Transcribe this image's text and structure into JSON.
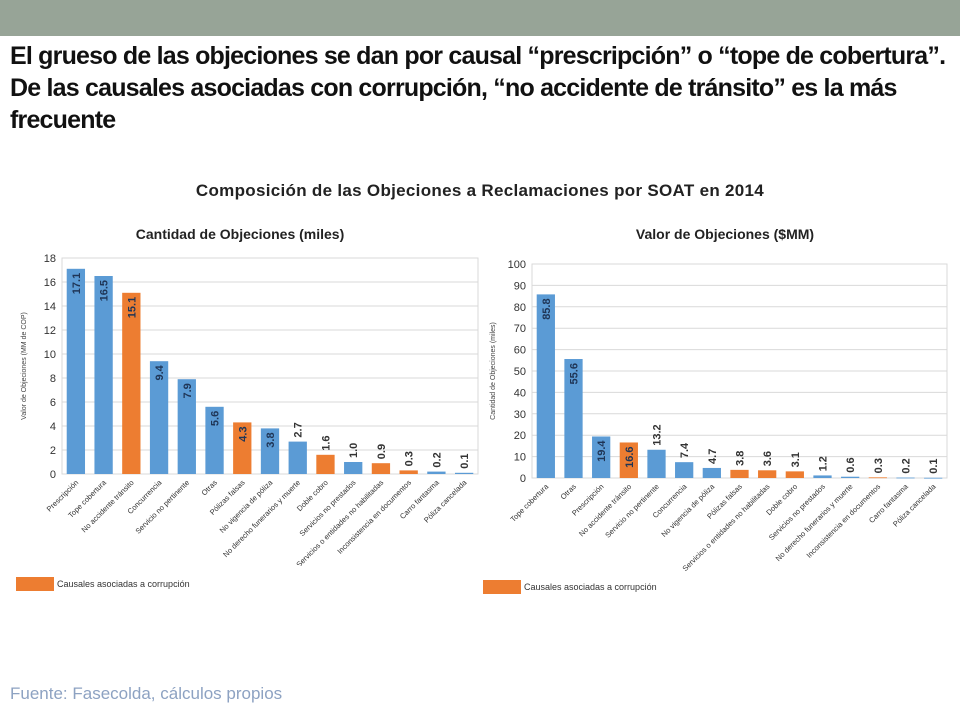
{
  "headline": "El grueso de las objeciones se dan por causal “prescripción” o “tope de cobertura”. De las causales asociadas con corrupción, “no accidente de tránsito” es la más frecuente",
  "main_title": "Composición de las Objeciones a Reclamaciones por SOAT en 2014",
  "source": "Fuente: Fasecolda, cálculos propios",
  "colors": {
    "normal": "#5b9bd5",
    "corruption": "#ed7d31",
    "grid": "#d9d9d9"
  },
  "chart_data": [
    {
      "type": "bar",
      "title": "Cantidad de Objeciones (miles)",
      "ylabel": "Valor de Objeciones (MM de COP)",
      "ylim": [
        0,
        18
      ],
      "yticks": [
        0,
        2,
        4,
        6,
        8,
        10,
        12,
        14,
        16,
        18
      ],
      "categories": [
        "Prescripción",
        "Tope cobertura",
        "No accidente tránsito",
        "Concurrencia",
        "Servicio no pertinente",
        "Otras",
        "Pólizas falsas",
        "No vigencia de póliza",
        "No derecho funerarios y muerte",
        "Doble cobro",
        "Servicios no prestados",
        "Servicios o entidades no habilitadas",
        "Inconsistencia en documentos",
        "Carro fantasma",
        "Póliza cancelada"
      ],
      "values": [
        17.1,
        16.5,
        15.1,
        9.4,
        7.9,
        5.6,
        4.3,
        3.8,
        2.7,
        1.6,
        1.0,
        0.9,
        0.3,
        0.2,
        0.1
      ],
      "value_labels": [
        "17.1",
        "16.5",
        "15.1",
        "9.4",
        "7.9",
        "5.6",
        "4.3",
        "3.8",
        "2.7",
        "1.6",
        "1.0",
        "0.9",
        "0.3",
        "0.2",
        "0.1"
      ],
      "corruption": [
        false,
        false,
        true,
        false,
        false,
        false,
        true,
        false,
        false,
        true,
        false,
        true,
        true,
        false,
        false
      ],
      "legend": "Causales asociadas a corrupción",
      "grid": true
    },
    {
      "type": "bar",
      "title": "Valor de Objeciones ($MM)",
      "ylabel": "Cantidad de Objeciones (miles)",
      "ylim": [
        0,
        100
      ],
      "yticks": [
        0,
        10,
        20,
        30,
        40,
        50,
        60,
        70,
        80,
        90,
        100
      ],
      "categories": [
        "Tope cobertura",
        "Otras",
        "Prescripción",
        "No accidente tránsito",
        "Servicio no pertinente",
        "Concurrencia",
        "No vigencia de póliza",
        "Pólizas falsas",
        "Servicios o entidades no habilitadas",
        "Doble cobro",
        "Servicios no prestados",
        "No derecho funerarios y muerte",
        "Inconsistencia en documentos",
        "Carro fantasma",
        "Póliza cancelada"
      ],
      "values": [
        85.8,
        55.6,
        19.4,
        16.6,
        13.2,
        7.4,
        4.7,
        3.8,
        3.6,
        3.1,
        1.2,
        0.6,
        0.3,
        0.2,
        0.1
      ],
      "value_labels": [
        "85.8",
        "55.6",
        "19.4",
        "16.6",
        "13.2",
        "7.4",
        "4.7",
        "3.8",
        "3.6",
        "3.1",
        "1.2",
        "0.6",
        "0.3",
        "0.2",
        "0.1"
      ],
      "corruption": [
        false,
        false,
        false,
        true,
        false,
        false,
        false,
        true,
        true,
        true,
        false,
        false,
        true,
        false,
        false
      ],
      "legend": "Causales asociadas a corrupción",
      "grid": true
    }
  ]
}
